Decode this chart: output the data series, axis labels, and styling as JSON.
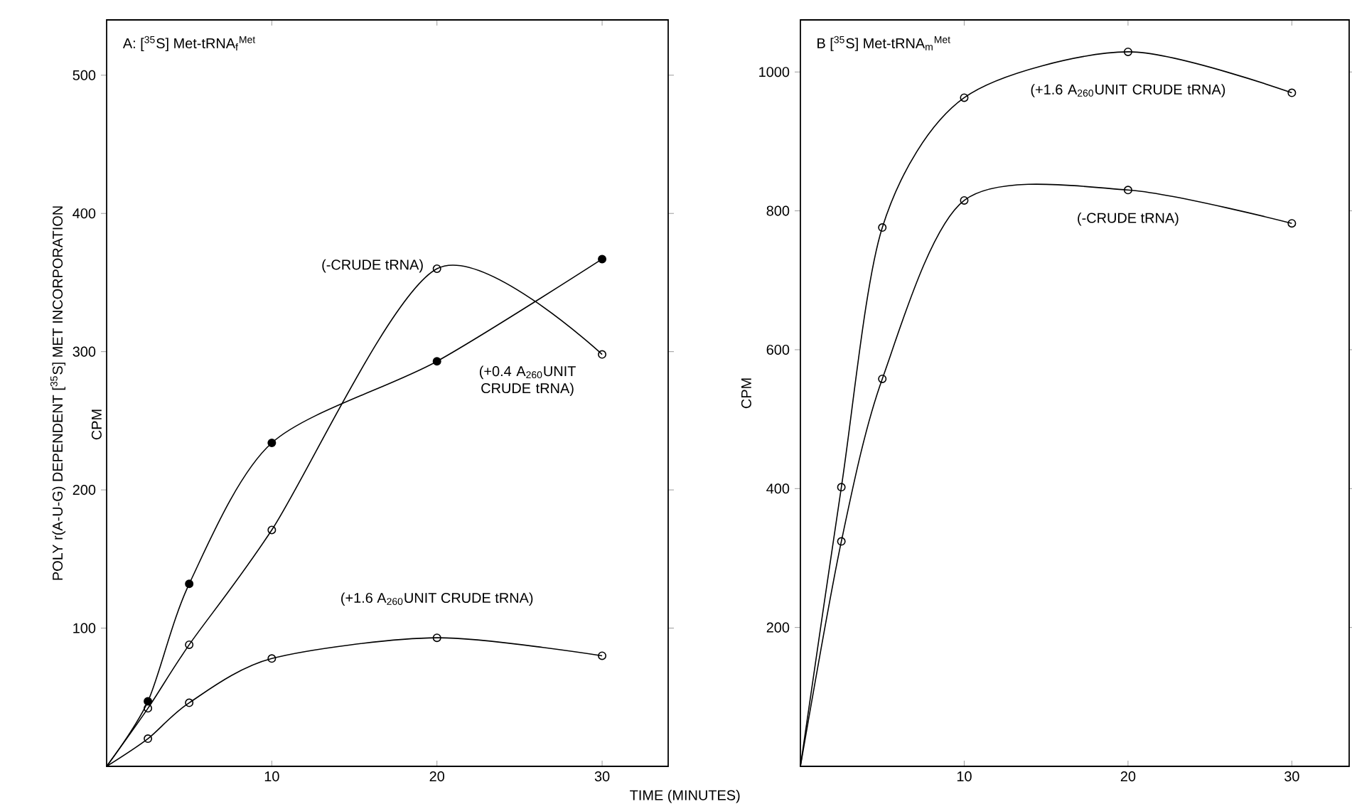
{
  "chart_data": [
    {
      "type": "line",
      "title": "A: [$^{35}$S] Met-tRNA$_{f}$$^{Met}$",
      "xlabel": "TIME (MINUTES)",
      "ylabel": "POLY r(A-U-G) DEPENDENT [$^{35}$S] MET INCORPORATION",
      "annotations": [
        "CPM"
      ],
      "x": [
        0,
        2.5,
        5,
        10,
        20,
        30
      ],
      "xlim": [
        0,
        34
      ],
      "ylim": [
        0,
        540
      ],
      "xticks": [
        10,
        20,
        30
      ],
      "yticks": [
        100,
        200,
        300,
        400,
        500
      ],
      "marker": "circle",
      "line_style": "solid",
      "series": [
        {
          "name": "(-CRUDE tRNA)",
          "color": "#000000",
          "values": [
            0,
            42,
            88,
            171,
            360,
            298
          ]
        },
        {
          "name": "(+0.4 A$_{260}$UNIT CRUDE tRNA)",
          "color": "#000000",
          "values": [
            0,
            47,
            132,
            234,
            293,
            367
          ]
        },
        {
          "name": "(+1.6 A$_{260}$UNIT CRUDE tRNA)",
          "color": "#000000",
          "values": [
            0,
            20,
            46,
            78,
            93,
            80
          ]
        }
      ]
    },
    {
      "type": "line",
      "title": "B [$^{35}$S] Met-tRNA$_{m}$$^{Met}$",
      "ylabel": "CPM",
      "x": [
        0,
        2.5,
        5,
        10,
        20,
        30
      ],
      "xlim": [
        0,
        33.5
      ],
      "ylim": [
        0,
        1075
      ],
      "xticks": [
        10,
        20,
        30
      ],
      "yticks": [
        200,
        400,
        600,
        800,
        1000
      ],
      "marker": "circle",
      "line_style": "solid",
      "series": [
        {
          "name": "(+1.6 A$_{260}$UNIT CRUDE tRNA)",
          "color": "#000000",
          "values": [
            0,
            402,
            776,
            963,
            1029,
            970
          ]
        },
        {
          "name": "(-CRUDE tRNA)",
          "color": "#000000",
          "values": [
            0,
            324,
            558,
            815,
            830,
            782
          ]
        }
      ]
    }
  ]
}
